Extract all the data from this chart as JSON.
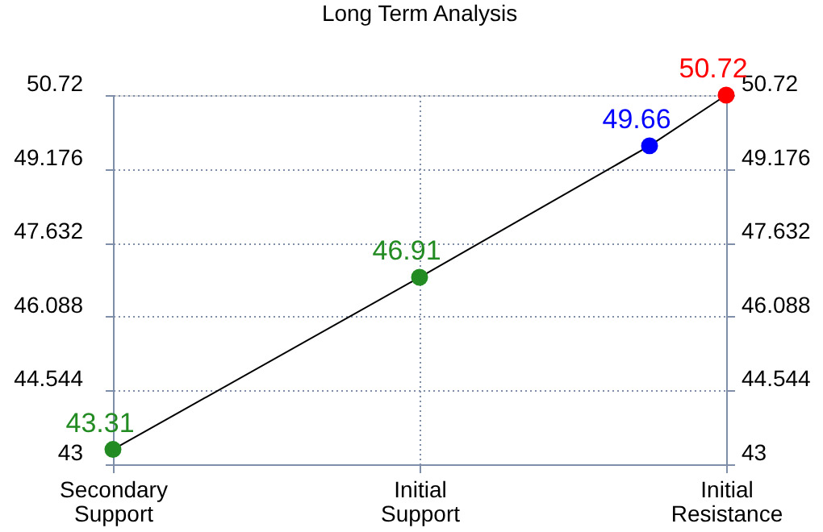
{
  "chart_data": {
    "type": "line",
    "title": "Long Term Analysis",
    "categories": [
      "Secondary Support",
      null,
      null,
      null,
      "Initial Support",
      null,
      null,
      null,
      "Initial Resistance"
    ],
    "series": [
      {
        "color": "#000000",
        "colors": [
          "#228b22",
          null,
          null,
          null,
          "#228b22",
          null,
          null,
          "#0000ff",
          "#ff0000"
        ],
        "values": [
          43.31,
          null,
          null,
          null,
          46.91,
          null,
          null,
          49.66,
          50.72
        ]
      }
    ],
    "ylim": [
      43,
      50.72
    ],
    "yticks": [
      43,
      44.544,
      46.088,
      47.632,
      49.176,
      50.72
    ],
    "y2lim": [
      43,
      50.72
    ],
    "y2ticks": [
      43,
      44.544,
      46.088,
      47.632,
      49.176,
      50.72
    ],
    "grid": true,
    "marker": "circle",
    "line_style": "solid",
    "data_labels": true,
    "legend": false
  }
}
